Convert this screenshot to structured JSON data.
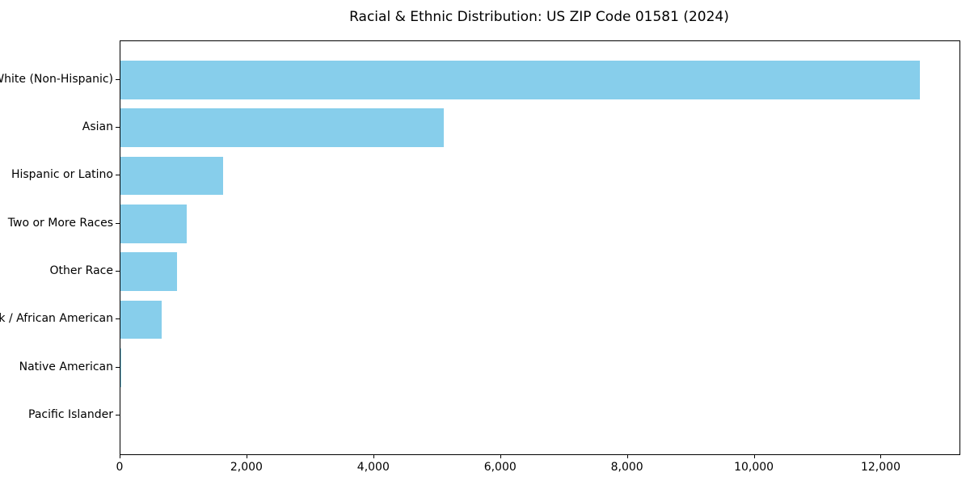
{
  "chart_data": {
    "type": "bar",
    "orientation": "horizontal",
    "title": "Racial & Ethnic Distribution: US ZIP Code 01581 (2024)",
    "categories": [
      "White (Non-Hispanic)",
      "Asian",
      "Hispanic or Latino",
      "Two or More Races",
      "Other Race",
      "Black / African American",
      "Native American",
      "Pacific Islander"
    ],
    "values": [
      12600,
      5100,
      1620,
      1045,
      890,
      650,
      15,
      0
    ],
    "xlabel": "",
    "ylabel": "",
    "xlim": [
      0,
      13230
    ],
    "xtick_values": [
      0,
      2000,
      4000,
      6000,
      8000,
      10000,
      12000
    ],
    "xtick_labels": [
      "0",
      "2,000",
      "4,000",
      "6,000",
      "8,000",
      "10,000",
      "12,000"
    ],
    "bar_color": "#87CEEB",
    "axis_color": "#000000",
    "background_color": "#ffffff",
    "grid": false,
    "legend": false
  }
}
